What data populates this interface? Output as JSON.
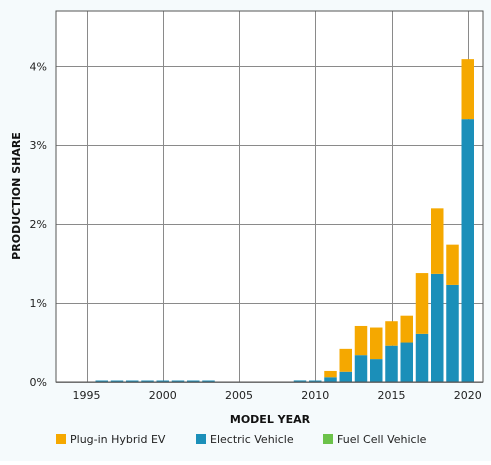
{
  "chart_data": {
    "type": "bar",
    "stacked": true,
    "xlabel": "MODEL YEAR",
    "ylabel": "PRODUCTION SHARE",
    "xlim": [
      1993,
      2021
    ],
    "ylim": [
      0,
      4.7
    ],
    "x_ticks": [
      1995,
      2000,
      2005,
      2010,
      2015,
      2020
    ],
    "y_ticks": [
      0,
      1,
      2,
      3,
      4
    ],
    "y_tick_labels": [
      "0%",
      "1%",
      "2%",
      "3%",
      "4%"
    ],
    "grid": true,
    "legend_position": "bottom",
    "x": [
      1996,
      1997,
      1998,
      1999,
      2000,
      2001,
      2002,
      2003,
      2009,
      2010,
      2011,
      2012,
      2013,
      2014,
      2015,
      2016,
      2017,
      2018,
      2019,
      2020
    ],
    "series": [
      {
        "name": "Electric Vehicle",
        "color": "#1b8fb9",
        "values": [
          0.01,
          0.01,
          0.01,
          0.01,
          0.01,
          0.01,
          0.01,
          0.01,
          0.02,
          0.01,
          0.06,
          0.13,
          0.34,
          0.29,
          0.46,
          0.5,
          0.61,
          1.37,
          1.23,
          3.33
        ]
      },
      {
        "name": "Plug-in Hybrid EV",
        "color": "#f5a800",
        "values": [
          0,
          0,
          0,
          0,
          0,
          0,
          0,
          0,
          0,
          0,
          0.08,
          0.29,
          0.37,
          0.4,
          0.31,
          0.34,
          0.77,
          0.83,
          0.51,
          0.76
        ]
      },
      {
        "name": "Fuel Cell Vehicle",
        "color": "#6cc24a",
        "values": [
          0,
          0,
          0,
          0,
          0,
          0,
          0,
          0,
          0,
          0,
          0,
          0,
          0,
          0,
          0,
          0,
          0,
          0,
          0,
          0
        ]
      }
    ],
    "legend": [
      {
        "name": "Plug-in Hybrid EV",
        "color": "#f5a800"
      },
      {
        "name": "Electric Vehicle",
        "color": "#1b8fb9"
      },
      {
        "name": "Fuel Cell Vehicle",
        "color": "#6cc24a"
      }
    ]
  }
}
